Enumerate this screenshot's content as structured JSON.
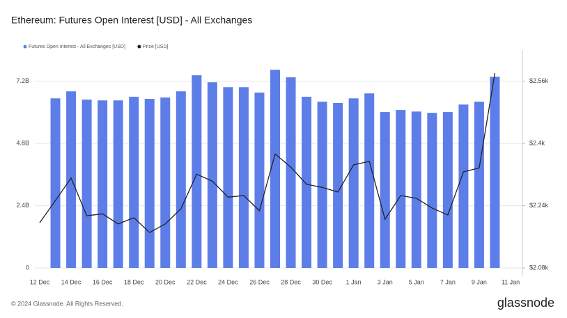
{
  "chart_data": {
    "type": "bar",
    "title": "Ethereum: Futures Open Interest [USD] - All Exchanges",
    "categories": [
      "12 Dec",
      null,
      "14 Dec",
      null,
      "16 Dec",
      null,
      "18 Dec",
      null,
      "20 Dec",
      null,
      "22 Dec",
      null,
      "24 Dec",
      null,
      "26 Dec",
      null,
      "28 Dec",
      null,
      "30 Dec",
      null,
      "1 Jan",
      null,
      "3 Jan",
      null,
      "5 Jan",
      null,
      "7 Jan",
      null,
      "9 Jan",
      null,
      "11 Jan"
    ],
    "series": [
      {
        "name": "Futures Open Interest - All Exchanges [USD]",
        "type": "bar",
        "color": "#5d7ee8",
        "values": [
          null,
          6540000000,
          6810000000,
          6490000000,
          6460000000,
          6460000000,
          6600000000,
          6520000000,
          6570000000,
          6810000000,
          7430000000,
          7160000000,
          6970000000,
          6970000000,
          6760000000,
          7640000000,
          7350000000,
          6600000000,
          6410000000,
          6360000000,
          6540000000,
          6730000000,
          6010000000,
          6090000000,
          6030000000,
          5980000000,
          6010000000,
          6300000000,
          6410000000,
          7370000000,
          null
        ]
      },
      {
        "name": "Price [USD]",
        "type": "line",
        "axis": "y2",
        "color": "#222222",
        "values": [
          2196,
          2253,
          2311,
          2214,
          2219,
          2193,
          2209,
          2171,
          2193,
          2232,
          2321,
          2303,
          2262,
          2266,
          2227,
          2373,
          2339,
          2295,
          2287,
          2275,
          2345,
          2354,
          2205,
          2266,
          2259,
          2234,
          2216,
          2327,
          2337,
          2581,
          null
        ]
      }
    ],
    "ylim": [
      0,
      8400000000
    ],
    "yticks": [
      0,
      {
        "value": 2400000000,
        "label": "2.4B"
      },
      {
        "value": 4800000000,
        "label": "4.8B"
      },
      {
        "value": 7200000000,
        "label": "7.2B"
      }
    ],
    "y2lim": [
      2080,
      2640
    ],
    "y2ticks": [
      {
        "value": 2080,
        "label": "$2.08k"
      },
      {
        "value": 2240,
        "label": "$2.24k"
      },
      {
        "value": 2400,
        "label": "$2.4k"
      },
      {
        "value": 2560,
        "label": "$2.56k"
      }
    ],
    "grid": true
  },
  "footer": {
    "copyright": "© 2024 Glassnode. All Rights Reserved.",
    "brand": "glassnode"
  }
}
